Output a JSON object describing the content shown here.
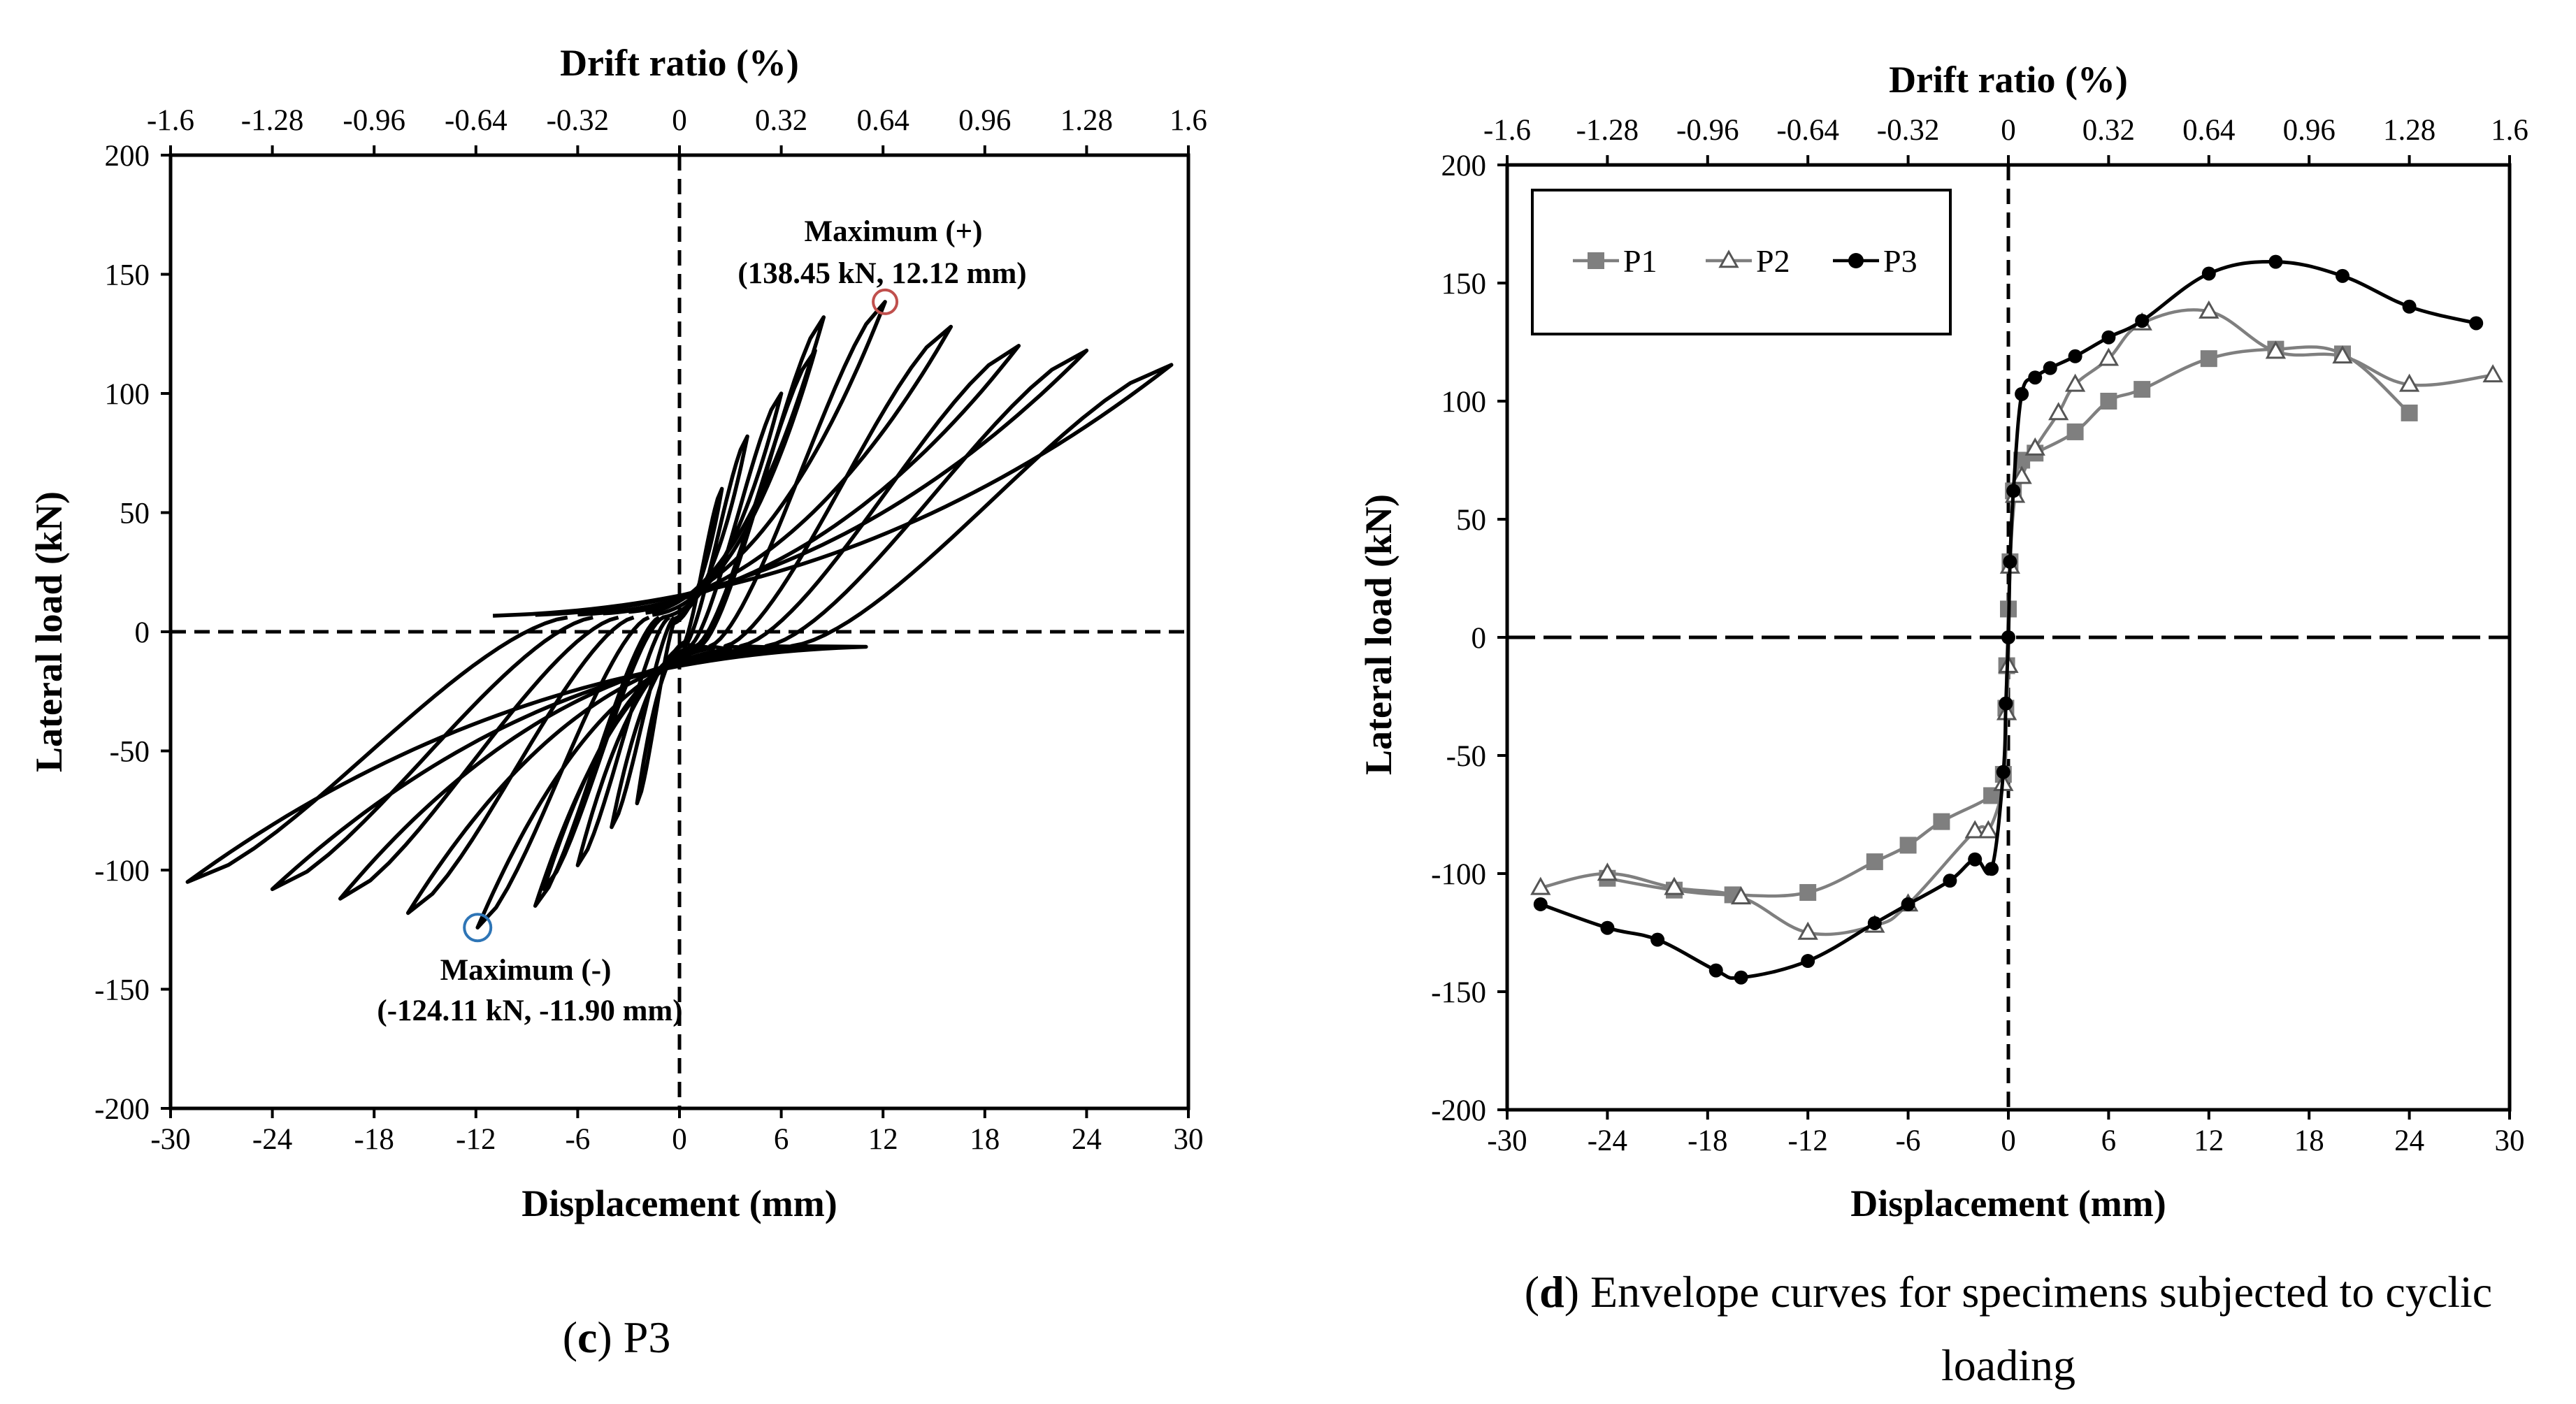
{
  "chart_data": [
    {
      "id": "c",
      "type": "line",
      "caption_letter": "c",
      "caption_text": " P3",
      "xlabel": "Displacement (mm)",
      "ylabel": "Lateral load (kN)",
      "x2label": "Drift ratio (%)",
      "xlim": [
        -30,
        30
      ],
      "ylim": [
        -200,
        200
      ],
      "xticks": [
        "-30",
        "-24",
        "-18",
        "-12",
        "-6",
        "0",
        "6",
        "12",
        "18",
        "24",
        "30"
      ],
      "yticks": [
        "200",
        "150",
        "100",
        "50",
        "0",
        "-50",
        "-100",
        "-150",
        "-200"
      ],
      "x2ticks": [
        "-1.6",
        "-1.28",
        "-0.96",
        "-0.64",
        "-0.32",
        "0",
        "0.32",
        "0.64",
        "0.96",
        "1.28",
        "1.6"
      ],
      "grid": false,
      "reference_lines": {
        "x": 0,
        "y": 0,
        "style": "dashed"
      },
      "series": [
        {
          "cycles": [
            {
              "amp_pos": [
                2.5,
                60
              ],
              "amp_neg": [
                -2.5,
                -72
              ],
              "x0": 0.3
            },
            {
              "amp_pos": [
                4.0,
                82
              ],
              "amp_neg": [
                -4.0,
                -82
              ],
              "x0": 0.5
            },
            {
              "amp_pos": [
                6.0,
                100
              ],
              "amp_neg": [
                -6.0,
                -98
              ],
              "x0": 1.0
            },
            {
              "amp_pos": [
                8.0,
                118
              ],
              "amp_neg": [
                -8.0,
                -108
              ],
              "x0": 1.6
            },
            {
              "amp_pos": [
                8.5,
                132
              ],
              "amp_neg": [
                -8.5,
                -115
              ],
              "x0": 2.0
            },
            {
              "amp_pos": [
                12.12,
                138.45
              ],
              "amp_neg": [
                -11.9,
                -124.11
              ],
              "x0": 3.0
            },
            {
              "amp_pos": [
                16.0,
                128
              ],
              "amp_neg": [
                -16.0,
                -118
              ],
              "x0": 4.5
            },
            {
              "amp_pos": [
                20.0,
                120
              ],
              "amp_neg": [
                -20.0,
                -112
              ],
              "x0": 6.0
            },
            {
              "amp_pos": [
                24.0,
                118
              ],
              "amp_neg": [
                -24.0,
                -108
              ],
              "x0": 8.5
            },
            {
              "amp_pos": [
                29.0,
                112
              ],
              "amp_neg": [
                -29.0,
                -105
              ],
              "x0": 11.0
            }
          ]
        }
      ],
      "annotations": [
        {
          "line1": "Maximum (+)",
          "line2": "(138.45 kN, 12.12 mm)",
          "x": 12.12,
          "y": 138.45,
          "circle_color": "#c0504d"
        },
        {
          "line1": "Maximum (-)",
          "line2": "(-124.11 kN, -11.90 mm)",
          "x": -11.9,
          "y": -124.11,
          "circle_color": "#2e75b6"
        }
      ]
    },
    {
      "id": "d",
      "type": "line",
      "caption_letter": "d",
      "caption_line1": " Envelope curves for specimens subjected to cyclic",
      "caption_line2": "loading",
      "xlabel": "Displacement (mm)",
      "ylabel": "Lateral load (kN)",
      "x2label": "Drift ratio (%)",
      "xlim": [
        -30,
        30
      ],
      "ylim": [
        -200,
        200
      ],
      "xticks": [
        "-30",
        "-24",
        "-18",
        "-12",
        "-6",
        "0",
        "6",
        "12",
        "18",
        "24",
        "30"
      ],
      "yticks": [
        "200",
        "150",
        "100",
        "50",
        "0",
        "-50",
        "-100",
        "-150",
        "-200"
      ],
      "x2ticks": [
        "-1.6",
        "-1.28",
        "-0.96",
        "-0.64",
        "-0.32",
        "0",
        "0.32",
        "0.64",
        "0.96",
        "1.28",
        "1.6"
      ],
      "grid": false,
      "legend": "top-left",
      "reference_lines": {
        "x": 0,
        "y": 0,
        "style": "dashed"
      },
      "series": [
        {
          "name": "P1",
          "color": "#7f7f7f",
          "marker": "square",
          "points": [
            [
              -24,
              -102
            ],
            [
              -20,
              -107
            ],
            [
              -16.5,
              -109
            ],
            [
              -12,
              -108
            ],
            [
              -8,
              -95
            ],
            [
              -6,
              -88
            ],
            [
              -4,
              -78
            ],
            [
              -1,
              -67
            ],
            [
              -0.3,
              -58
            ],
            [
              -0.15,
              -30
            ],
            [
              -0.1,
              -12
            ],
            [
              0,
              12
            ],
            [
              0.1,
              32
            ],
            [
              0.3,
              62
            ],
            [
              0.8,
              75
            ],
            [
              1.6,
              78
            ],
            [
              4,
              87
            ],
            [
              6,
              100
            ],
            [
              8,
              105
            ],
            [
              12,
              118
            ],
            [
              16,
              122
            ],
            [
              20,
              120
            ],
            [
              24,
              95
            ]
          ]
        },
        {
          "name": "P2",
          "color": "#7f7f7f",
          "marker": "triangle",
          "points": [
            [
              -28,
              -106
            ],
            [
              -24,
              -100
            ],
            [
              -20,
              -106
            ],
            [
              -16,
              -110
            ],
            [
              -12,
              -125
            ],
            [
              -8,
              -122
            ],
            [
              -6,
              -113
            ],
            [
              -2,
              -82
            ],
            [
              -1.2,
              -82
            ],
            [
              -0.3,
              -62
            ],
            [
              -0.1,
              -32
            ],
            [
              0,
              -12
            ],
            [
              0.1,
              30
            ],
            [
              0.4,
              60
            ],
            [
              0.8,
              68
            ],
            [
              1.6,
              80
            ],
            [
              3,
              95
            ],
            [
              4,
              107
            ],
            [
              6,
              118
            ],
            [
              8,
              133
            ],
            [
              12,
              138
            ],
            [
              16,
              121
            ],
            [
              20,
              119
            ],
            [
              24,
              107
            ],
            [
              29,
              111
            ]
          ]
        },
        {
          "name": "P3",
          "color": "#000000",
          "marker": "circle",
          "points": [
            [
              -28,
              -113
            ],
            [
              -24,
              -123
            ],
            [
              -21,
              -128
            ],
            [
              -17.5,
              -141
            ],
            [
              -16,
              -144
            ],
            [
              -12,
              -137
            ],
            [
              -8,
              -121
            ],
            [
              -6,
              -113
            ],
            [
              -3.5,
              -103
            ],
            [
              -2,
              -94
            ],
            [
              -1,
              -98
            ],
            [
              -0.3,
              -57
            ],
            [
              -0.15,
              -28
            ],
            [
              0,
              0
            ],
            [
              0.1,
              32
            ],
            [
              0.3,
              62
            ],
            [
              0.8,
              103
            ],
            [
              1.6,
              110
            ],
            [
              2.5,
              114
            ],
            [
              4,
              119
            ],
            [
              6,
              127
            ],
            [
              8,
              134
            ],
            [
              12,
              154
            ],
            [
              16,
              159
            ],
            [
              20,
              153
            ],
            [
              24,
              140
            ],
            [
              28,
              133
            ]
          ]
        }
      ]
    }
  ]
}
